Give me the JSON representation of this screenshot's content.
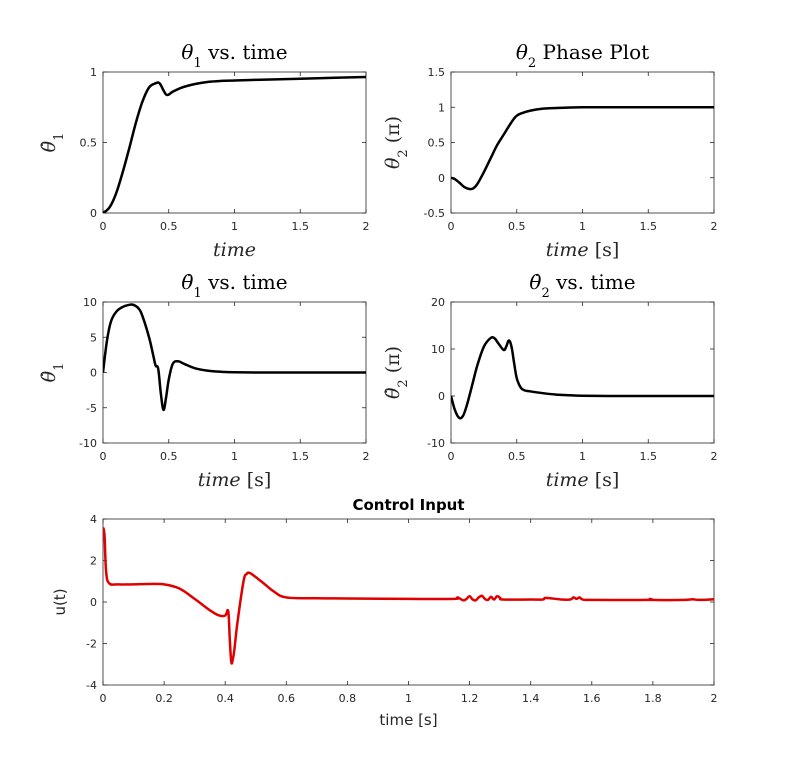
{
  "chart_data": [
    {
      "id": "theta1",
      "type": "line",
      "title_parts": [
        {
          "t": "θ",
          "it": true
        },
        {
          "t": "1",
          "sub": true
        },
        {
          "t": " vs.  time"
        }
      ],
      "xlabel_parts": [
        {
          "t": "time",
          "it": true
        }
      ],
      "ylabel_parts": [
        {
          "t": "θ̇",
          "it": true
        },
        {
          "t": "1",
          "sub": true
        }
      ],
      "xlim": [
        0,
        2
      ],
      "ylim": [
        0,
        1
      ],
      "xticks": [
        0,
        0.5,
        1,
        1.5,
        2
      ],
      "xtick_labels": [
        "0",
        "0.5",
        "1",
        "1.5",
        "2"
      ],
      "yticks": [
        0,
        0.5,
        1
      ],
      "ytick_labels": [
        "0",
        "0.5",
        "1"
      ],
      "grid": false,
      "series": [
        {
          "color": "#000000",
          "x": [
            0,
            0.05,
            0.1,
            0.15,
            0.2,
            0.25,
            0.3,
            0.35,
            0.4,
            0.43,
            0.46,
            0.48,
            0.5,
            0.53,
            0.6,
            0.7,
            0.8,
            0.9,
            1.0,
            1.2,
            1.5,
            1.8,
            2.0
          ],
          "y": [
            0,
            0.04,
            0.14,
            0.29,
            0.46,
            0.64,
            0.79,
            0.89,
            0.92,
            0.92,
            0.87,
            0.84,
            0.84,
            0.86,
            0.89,
            0.915,
            0.93,
            0.937,
            0.94,
            0.945,
            0.952,
            0.96,
            0.965
          ]
        }
      ]
    },
    {
      "id": "theta2",
      "type": "line",
      "title_parts": [
        {
          "t": "θ",
          "it": true
        },
        {
          "t": "2",
          "sub": true
        },
        {
          "t": " Phase Plot"
        }
      ],
      "xlabel_parts": [
        {
          "t": "time",
          "it": true
        },
        {
          "t": " [s]"
        }
      ],
      "ylabel_parts": [
        {
          "t": "θ",
          "it": true
        },
        {
          "t": "2",
          "sub": true
        },
        {
          "t": " (π)"
        }
      ],
      "xlim": [
        0,
        2
      ],
      "ylim": [
        -0.5,
        1.5
      ],
      "xticks": [
        0,
        0.5,
        1,
        1.5,
        2
      ],
      "xtick_labels": [
        "0",
        "0.5",
        "1",
        "1.5",
        "2"
      ],
      "yticks": [
        -0.5,
        0,
        0.5,
        1,
        1.5
      ],
      "ytick_labels": [
        "-0.5",
        "0",
        "0.5",
        "1",
        "1.5"
      ],
      "grid": false,
      "series": [
        {
          "color": "#000000",
          "x": [
            0,
            0.03,
            0.07,
            0.1,
            0.14,
            0.17,
            0.2,
            0.25,
            0.3,
            0.35,
            0.4,
            0.45,
            0.48,
            0.5,
            0.53,
            0.6,
            0.7,
            0.8,
            1.0,
            1.2,
            1.5,
            2.0
          ],
          "y": [
            0,
            -0.02,
            -0.08,
            -0.13,
            -0.16,
            -0.15,
            -0.09,
            0.08,
            0.27,
            0.46,
            0.61,
            0.76,
            0.84,
            0.88,
            0.91,
            0.95,
            0.98,
            0.99,
            1.0,
            1.0,
            1.0,
            1.0
          ]
        }
      ]
    },
    {
      "id": "theta1dot",
      "type": "line",
      "title_parts": [
        {
          "t": "θ̇",
          "it": true
        },
        {
          "t": "1",
          "sub": true
        },
        {
          "t": " vs.  time"
        }
      ],
      "xlabel_parts": [
        {
          "t": "time",
          "it": true
        },
        {
          "t": " [s]"
        }
      ],
      "ylabel_parts": [
        {
          "t": "θ̇",
          "it": true
        },
        {
          "t": "1",
          "sub": true
        }
      ],
      "xlim": [
        0,
        2
      ],
      "ylim": [
        -10,
        10
      ],
      "xticks": [
        0,
        0.5,
        1,
        1.5,
        2
      ],
      "xtick_labels": [
        "0",
        "0.5",
        "1",
        "1.5",
        "2"
      ],
      "yticks": [
        -10,
        -5,
        0,
        5,
        10
      ],
      "ytick_labels": [
        "-10",
        "-5",
        "0",
        "5",
        "10"
      ],
      "grid": false,
      "series": [
        {
          "color": "#000000",
          "x": [
            0,
            0.03,
            0.06,
            0.1,
            0.15,
            0.2,
            0.23,
            0.27,
            0.3,
            0.35,
            0.38,
            0.4,
            0.42,
            0.44,
            0.46,
            0.48,
            0.5,
            0.53,
            0.57,
            0.62,
            0.7,
            0.8,
            0.9,
            1.0,
            1.2,
            1.5,
            2.0
          ],
          "y": [
            0,
            4.5,
            7.2,
            8.6,
            9.3,
            9.6,
            9.6,
            9.1,
            8.0,
            5.0,
            2.6,
            1.0,
            0.5,
            -3.0,
            -5.3,
            -3.5,
            -1.0,
            1.2,
            1.6,
            1.2,
            0.6,
            0.25,
            0.1,
            0.03,
            0.0,
            0.0,
            0.0
          ]
        }
      ]
    },
    {
      "id": "theta2dot",
      "type": "line",
      "title_parts": [
        {
          "t": "θ̇",
          "it": true
        },
        {
          "t": "2",
          "sub": true
        },
        {
          "t": " vs.  time"
        }
      ],
      "xlabel_parts": [
        {
          "t": "time",
          "it": true
        },
        {
          "t": " [s]"
        }
      ],
      "ylabel_parts": [
        {
          "t": "θ̇",
          "it": true
        },
        {
          "t": "2",
          "sub": true
        },
        {
          "t": " (π)"
        }
      ],
      "xlim": [
        0,
        2
      ],
      "ylim": [
        -10,
        20
      ],
      "xticks": [
        0,
        0.5,
        1,
        1.5,
        2
      ],
      "xtick_labels": [
        "0",
        "0.5",
        "1",
        "1.5",
        "2"
      ],
      "yticks": [
        -10,
        0,
        10,
        20
      ],
      "ytick_labels": [
        "-10",
        "0",
        "10",
        "20"
      ],
      "grid": false,
      "series": [
        {
          "color": "#000000",
          "x": [
            0,
            0.03,
            0.06,
            0.09,
            0.12,
            0.16,
            0.2,
            0.25,
            0.3,
            0.33,
            0.36,
            0.4,
            0.42,
            0.44,
            0.46,
            0.48,
            0.5,
            0.53,
            0.56,
            0.6,
            0.7,
            0.8,
            0.9,
            1.0,
            1.2,
            1.5,
            2.0
          ],
          "y": [
            0,
            -3.0,
            -4.6,
            -4.3,
            -2.0,
            2.2,
            6.5,
            10.5,
            12.3,
            12.3,
            11.2,
            9.8,
            10.5,
            11.8,
            10.5,
            7.0,
            3.8,
            1.8,
            1.2,
            1.0,
            0.6,
            0.3,
            0.15,
            0.05,
            0.0,
            0.0,
            0.0
          ]
        }
      ]
    },
    {
      "id": "control",
      "type": "line",
      "title_parts": [
        {
          "t": "Control Input"
        }
      ],
      "xlabel_parts": [
        {
          "t": "time [s]"
        }
      ],
      "ylabel_parts": [
        {
          "t": "u(t)"
        }
      ],
      "xlim": [
        0,
        2
      ],
      "ylim": [
        -4,
        4
      ],
      "xticks": [
        0,
        0.2,
        0.4,
        0.6,
        0.8,
        1,
        1.2,
        1.4,
        1.6,
        1.8,
        2
      ],
      "xtick_labels": [
        "0",
        "0.2",
        "0.4",
        "0.6",
        "0.8",
        "1",
        "1.2",
        "1.4",
        "1.6",
        "1.8",
        "2"
      ],
      "yticks": [
        -4,
        -2,
        0,
        2,
        4
      ],
      "ytick_labels": [
        "-4",
        "-2",
        "0",
        "2",
        "4"
      ],
      "grid": false,
      "series": [
        {
          "color": "#e00000",
          "x": [
            0,
            0.005,
            0.01,
            0.02,
            0.05,
            0.1,
            0.15,
            0.2,
            0.25,
            0.3,
            0.35,
            0.38,
            0.4,
            0.41,
            0.415,
            0.42,
            0.425,
            0.43,
            0.44,
            0.46,
            0.47,
            0.48,
            0.5,
            0.53,
            0.56,
            0.6,
            0.7,
            0.8,
            1.0,
            1.15,
            1.16,
            1.17,
            1.18,
            1.19,
            1.2,
            1.21,
            1.22,
            1.23,
            1.24,
            1.25,
            1.26,
            1.27,
            1.28,
            1.29,
            1.3,
            1.31,
            1.4,
            1.44,
            1.45,
            1.5,
            1.53,
            1.54,
            1.55,
            1.56,
            1.57,
            1.6,
            1.78,
            1.79,
            1.8,
            1.9,
            1.93,
            1.95,
            2.0
          ],
          "y": [
            3.6,
            3.2,
            1.5,
            0.9,
            0.85,
            0.85,
            0.87,
            0.85,
            0.65,
            0.15,
            -0.4,
            -0.65,
            -0.65,
            -0.45,
            -1.8,
            -2.9,
            -2.75,
            -2.3,
            -1.0,
            1.0,
            1.35,
            1.4,
            1.2,
            0.85,
            0.5,
            0.22,
            0.18,
            0.17,
            0.15,
            0.15,
            0.22,
            0.15,
            0.08,
            0.15,
            0.28,
            0.12,
            0.08,
            0.22,
            0.3,
            0.15,
            0.1,
            0.25,
            0.12,
            0.28,
            0.2,
            0.12,
            0.12,
            0.12,
            0.2,
            0.12,
            0.12,
            0.22,
            0.15,
            0.22,
            0.12,
            0.1,
            0.1,
            0.15,
            0.1,
            0.1,
            0.13,
            0.1,
            0.13
          ]
        }
      ]
    }
  ]
}
